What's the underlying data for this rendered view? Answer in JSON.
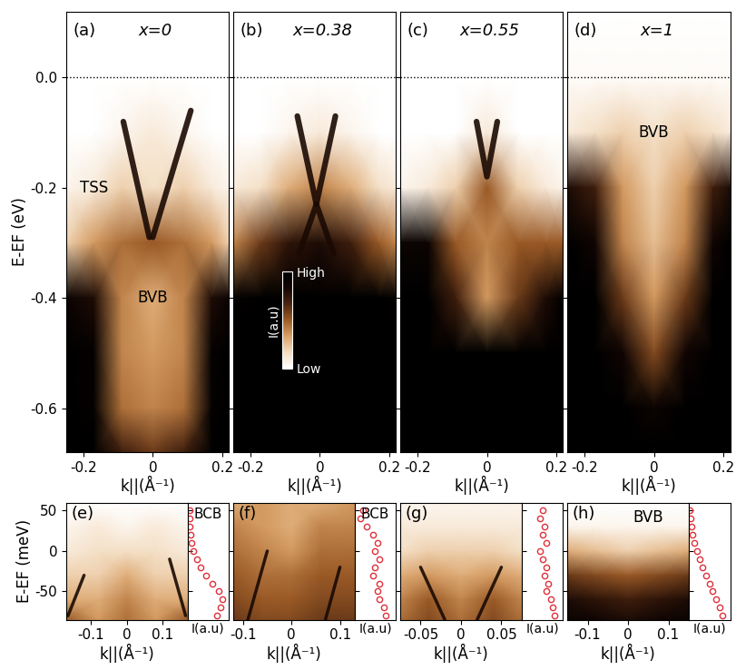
{
  "chart_data": [
    {
      "type": "heatmap",
      "panel": "(a)",
      "title": "x=0",
      "xlabel": "k||(Å⁻¹)",
      "ylabel": "E-EF (eV)",
      "xlim": [
        -0.25,
        0.22
      ],
      "ylim": [
        -0.68,
        0.12
      ],
      "xticks": [
        -0.2,
        0,
        0.2
      ],
      "yticks": [
        0.0,
        -0.2,
        -0.4,
        -0.6
      ],
      "fermi_level": 0.0,
      "k": [
        -0.25,
        -0.17,
        -0.09,
        0,
        0.09,
        0.17,
        0.22
      ],
      "E": [
        0.12,
        0.0,
        -0.1,
        -0.2,
        -0.3,
        -0.4,
        -0.5,
        -0.6,
        -0.68
      ],
      "intensity": [
        [
          0,
          0,
          0,
          0,
          0,
          0,
          0
        ],
        [
          0,
          0,
          0,
          0,
          0,
          0,
          0
        ],
        [
          0,
          0,
          0.05,
          0.1,
          0.05,
          0,
          0
        ],
        [
          0.05,
          0.1,
          0.2,
          0.15,
          0.2,
          0.1,
          0.05
        ],
        [
          0.2,
          0.35,
          0.45,
          0.5,
          0.45,
          0.35,
          0.2
        ],
        [
          0.9,
          0.8,
          0.4,
          0.3,
          0.4,
          0.8,
          0.9
        ],
        [
          1,
          0.95,
          0.4,
          0.35,
          0.4,
          0.95,
          1
        ],
        [
          1,
          0.95,
          0.45,
          0.4,
          0.45,
          0.95,
          1
        ],
        [
          1,
          1,
          0.7,
          0.6,
          0.7,
          1,
          1
        ]
      ],
      "bands": [
        {
          "k": [
            -0.085,
            -0.01
          ],
          "E": [
            -0.08,
            -0.29
          ]
        },
        {
          "k": [
            0.11,
            0.0
          ],
          "E": [
            -0.06,
            -0.29
          ]
        }
      ],
      "annotations": [
        {
          "text": "TSS",
          "k": -0.17,
          "E": -0.2
        },
        {
          "text": "BVB",
          "k": 0.0,
          "E": -0.4
        }
      ]
    },
    {
      "type": "heatmap",
      "panel": "(b)",
      "title": "x=0.38",
      "xlabel": "k||(Å⁻¹)",
      "tick_labels": "x",
      "xlim": [
        -0.25,
        0.22
      ],
      "ylim": [
        -0.68,
        0.12
      ],
      "xticks": [
        -0.2,
        0,
        0.2
      ],
      "yticks": [
        0.0,
        -0.2,
        -0.4,
        -0.6
      ],
      "fermi_level": 0.0,
      "k": [
        -0.25,
        -0.17,
        -0.09,
        0,
        0.09,
        0.17,
        0.22
      ],
      "E": [
        0.12,
        0.0,
        -0.1,
        -0.2,
        -0.3,
        -0.4,
        -0.5,
        -0.6,
        -0.68
      ],
      "intensity": [
        [
          0,
          0,
          0,
          0,
          0,
          0,
          0
        ],
        [
          0,
          0,
          0,
          0,
          0,
          0,
          0
        ],
        [
          0,
          0,
          0.05,
          0.1,
          0.05,
          0,
          0
        ],
        [
          0.1,
          0.15,
          0.3,
          0.4,
          0.3,
          0.15,
          0.1
        ],
        [
          0.4,
          0.6,
          0.75,
          0.8,
          0.7,
          0.5,
          0.4
        ],
        [
          0.95,
          1,
          1,
          1,
          1,
          1,
          0.95
        ],
        [
          1,
          1,
          1,
          1,
          1,
          1,
          1
        ],
        [
          1,
          1,
          1,
          1,
          1,
          1,
          1
        ],
        [
          1,
          1,
          1,
          1,
          1,
          1,
          1
        ]
      ],
      "bands": [
        {
          "k": [
            -0.065,
            -0.01,
            0.045
          ],
          "E": [
            -0.07,
            -0.23,
            -0.07
          ]
        },
        {
          "k": [
            -0.06,
            -0.01,
            0.04
          ],
          "E": [
            -0.32,
            -0.23,
            -0.32
          ]
        }
      ],
      "annotations": [],
      "colorbar": {
        "label": "I(a.u)",
        "range": [
          0,
          1
        ],
        "ticks": [
          {
            "value": 0,
            "label": "Low"
          },
          {
            "value": 1,
            "label": "High"
          }
        ]
      }
    },
    {
      "type": "heatmap",
      "panel": "(c)",
      "title": "x=0.55",
      "xlabel": "k||(Å⁻¹)",
      "tick_labels": "x",
      "xlim": [
        -0.25,
        0.22
      ],
      "ylim": [
        -0.68,
        0.12
      ],
      "xticks": [
        -0.2,
        0,
        0.2
      ],
      "yticks": [
        0.0,
        -0.2,
        -0.4,
        -0.6
      ],
      "fermi_level": 0.0,
      "k": [
        -0.25,
        -0.17,
        -0.09,
        0,
        0.09,
        0.17,
        0.22
      ],
      "E": [
        0.12,
        0.0,
        -0.1,
        -0.2,
        -0.3,
        -0.4,
        -0.5,
        -0.6,
        -0.68
      ],
      "intensity": [
        [
          0,
          0,
          0,
          0,
          0,
          0,
          0
        ],
        [
          0,
          0,
          0,
          0,
          0,
          0,
          0
        ],
        [
          0,
          0,
          0,
          0.1,
          0,
          0,
          0
        ],
        [
          0.05,
          0.1,
          0.2,
          0.5,
          0.2,
          0.1,
          0.05
        ],
        [
          0.9,
          0.9,
          0.5,
          0.4,
          0.5,
          0.5,
          0.5
        ],
        [
          1,
          1,
          0.7,
          0.35,
          0.6,
          0.8,
          1
        ],
        [
          1,
          1,
          1,
          1,
          1,
          1,
          1
        ],
        [
          1,
          1,
          1,
          1,
          1,
          1,
          1
        ],
        [
          1,
          1,
          1,
          1,
          1,
          1,
          1
        ]
      ],
      "bands": [
        {
          "k": [
            -0.03,
            0.0,
            0.03
          ],
          "E": [
            -0.08,
            -0.18,
            -0.08
          ]
        }
      ],
      "annotations": []
    },
    {
      "type": "heatmap",
      "panel": "(d)",
      "title": "x=1",
      "xlabel": "k||(Å⁻¹)",
      "tick_labels": "x",
      "xlim": [
        -0.25,
        0.22
      ],
      "ylim": [
        -0.68,
        0.12
      ],
      "xticks": [
        -0.2,
        0,
        0.2
      ],
      "yticks": [
        0.0,
        -0.2,
        -0.4,
        -0.6
      ],
      "fermi_level": 0.0,
      "k": [
        -0.25,
        -0.17,
        -0.09,
        0,
        0.09,
        0.17,
        0.22
      ],
      "E": [
        0.12,
        0.0,
        -0.1,
        -0.2,
        -0.3,
        -0.4,
        -0.5,
        -0.6,
        -0.68
      ],
      "intensity": [
        [
          0,
          0,
          0,
          0,
          0,
          0,
          0
        ],
        [
          0.02,
          0.02,
          0.02,
          0.02,
          0.02,
          0.02,
          0.02
        ],
        [
          0.1,
          0.15,
          0.2,
          0.15,
          0.2,
          0.15,
          0.1
        ],
        [
          0.8,
          0.7,
          0.35,
          0.2,
          0.35,
          0.7,
          0.8
        ],
        [
          1,
          0.85,
          0.4,
          0.25,
          0.4,
          0.85,
          1
        ],
        [
          1,
          1,
          0.6,
          0.35,
          0.6,
          1,
          1
        ],
        [
          1,
          1,
          0.85,
          0.55,
          0.85,
          1,
          1
        ],
        [
          1,
          1,
          1,
          0.9,
          1,
          1,
          1
        ],
        [
          1,
          1,
          1,
          1,
          1,
          1,
          1
        ]
      ],
      "bands": [],
      "annotations": [
        {
          "text": "BVB",
          "k": 0.0,
          "E": -0.1
        }
      ]
    },
    {
      "type": "heatmap",
      "panel": "(e)",
      "xlabel": "k||(Å⁻¹)",
      "ylabel": "E-EF (meV)",
      "xlim": [
        -0.17,
        0.17
      ],
      "ylim": [
        -85,
        60
      ],
      "xticks": [
        -0.1,
        0,
        0.1
      ],
      "yticks": [
        -50,
        0,
        50
      ],
      "k": [
        -0.17,
        -0.08,
        0,
        0.08,
        0.17
      ],
      "E": [
        60,
        30,
        0,
        -30,
        -60,
        -85
      ],
      "intensity": [
        [
          0,
          0,
          0,
          0,
          0
        ],
        [
          0.05,
          0.1,
          0.05,
          0.1,
          0.05
        ],
        [
          0.1,
          0.15,
          0.15,
          0.15,
          0.1
        ],
        [
          0.2,
          0.2,
          0.3,
          0.2,
          0.2
        ],
        [
          0.3,
          0.3,
          0.4,
          0.3,
          0.3
        ],
        [
          0.5,
          0.35,
          0.45,
          0.35,
          0.5
        ]
      ],
      "bands": [
        {
          "k": [
            -0.165,
            -0.12
          ],
          "E": [
            -80,
            -30
          ]
        },
        {
          "k": [
            0.165,
            0.12
          ],
          "E": [
            -80,
            -10
          ]
        }
      ],
      "annotations": [],
      "edc": {
        "xlabel": "I(a.u)",
        "xlim": [
          0,
          1
        ],
        "color": "#e0303a",
        "marker": "o",
        "E": [
          50,
          40,
          30,
          20,
          10,
          0,
          -10,
          -20,
          -30,
          -40,
          -50,
          -60,
          -70,
          -80
        ],
        "I": [
          0.05,
          0.05,
          0.06,
          0.08,
          0.1,
          0.15,
          0.22,
          0.32,
          0.45,
          0.6,
          0.75,
          0.85,
          0.8,
          0.7
        ],
        "annotations": [
          {
            "text": "BCB",
            "I": 0.5,
            "E": 45
          }
        ]
      }
    },
    {
      "type": "heatmap",
      "panel": "(f)",
      "xlabel": "k||(Å⁻¹)",
      "tick_labels": "x",
      "xlim": [
        -0.12,
        0.13
      ],
      "ylim": [
        -85,
        60
      ],
      "xticks": [
        -0.1,
        0,
        0.1
      ],
      "yticks": [
        -50,
        0,
        50
      ],
      "k": [
        -0.12,
        -0.06,
        0,
        0.06,
        0.13
      ],
      "E": [
        60,
        30,
        0,
        -30,
        -60,
        -85
      ],
      "intensity": [
        [
          0.3,
          0.35,
          0.3,
          0.3,
          0.35
        ],
        [
          0.4,
          0.35,
          0.3,
          0.4,
          0.4
        ],
        [
          0.45,
          0.4,
          0.35,
          0.45,
          0.45
        ],
        [
          0.5,
          0.45,
          0.45,
          0.5,
          0.5
        ],
        [
          0.55,
          0.5,
          0.5,
          0.55,
          0.55
        ],
        [
          0.6,
          0.55,
          0.55,
          0.6,
          0.6
        ]
      ],
      "bands": [
        {
          "k": [
            -0.09,
            -0.05
          ],
          "E": [
            -85,
            0
          ]
        },
        {
          "k": [
            0.07,
            0.1
          ],
          "E": [
            -85,
            -20
          ]
        }
      ],
      "annotations": [],
      "edc": {
        "xlabel": "I(a.u)",
        "xlim": [
          0,
          1
        ],
        "color": "#e0303a",
        "marker": "o",
        "E": [
          50,
          40,
          30,
          20,
          10,
          0,
          -10,
          -20,
          -30,
          -40,
          -50,
          -60,
          -70,
          -80
        ],
        "I": [
          0.2,
          0.15,
          0.3,
          0.45,
          0.55,
          0.5,
          0.6,
          0.5,
          0.45,
          0.6,
          0.55,
          0.6,
          0.7,
          0.75
        ],
        "annotations": [
          {
            "text": "BCB",
            "I": 0.5,
            "E": 45
          }
        ]
      }
    },
    {
      "type": "heatmap",
      "panel": "(g)",
      "xlabel": "k||(Å⁻¹)",
      "tick_labels": "x",
      "xlim": [
        -0.075,
        0.075
      ],
      "ylim": [
        -85,
        60
      ],
      "xticks": [
        -0.05,
        0,
        0.05
      ],
      "yticks": [
        -50,
        0,
        50
      ],
      "k": [
        -0.075,
        -0.04,
        0,
        0.04,
        0.075
      ],
      "E": [
        60,
        30,
        0,
        -30,
        -60,
        -85
      ],
      "intensity": [
        [
          0.05,
          0.05,
          0.05,
          0.05,
          0.05
        ],
        [
          0.1,
          0.1,
          0.1,
          0.1,
          0.1
        ],
        [
          0.15,
          0.2,
          0.2,
          0.2,
          0.15
        ],
        [
          0.3,
          0.35,
          0.3,
          0.35,
          0.3
        ],
        [
          0.4,
          0.5,
          0.4,
          0.5,
          0.4
        ],
        [
          0.45,
          0.55,
          0.45,
          0.55,
          0.45
        ]
      ],
      "bands": [
        {
          "k": [
            -0.02,
            -0.05
          ],
          "E": [
            -85,
            -20
          ]
        },
        {
          "k": [
            0.02,
            0.05
          ],
          "E": [
            -85,
            -20
          ]
        }
      ],
      "annotations": [],
      "edc": {
        "xlabel": "I(a.u)",
        "xlim": [
          0,
          1
        ],
        "color": "#e0303a",
        "marker": "o",
        "E": [
          50,
          40,
          30,
          20,
          10,
          0,
          -10,
          -20,
          -30,
          -40,
          -50,
          -60,
          -70,
          -80
        ],
        "I": [
          0.5,
          0.45,
          0.55,
          0.5,
          0.6,
          0.45,
          0.5,
          0.6,
          0.55,
          0.65,
          0.6,
          0.7,
          0.75,
          0.8
        ],
        "annotations": []
      }
    },
    {
      "type": "heatmap",
      "panel": "(h)",
      "xlabel": "k||(Å⁻¹)",
      "tick_labels": "x",
      "xlim": [
        -0.15,
        0.15
      ],
      "ylim": [
        -85,
        60
      ],
      "xticks": [
        -0.1,
        0,
        0.1
      ],
      "yticks": [
        -50,
        0,
        50
      ],
      "k": [
        -0.15,
        -0.08,
        0,
        0.08,
        0.15
      ],
      "E": [
        60,
        30,
        0,
        -30,
        -60,
        -85
      ],
      "intensity": [
        [
          0,
          0,
          0,
          0,
          0
        ],
        [
          0.05,
          0.05,
          0.05,
          0.05,
          0.05
        ],
        [
          0.3,
          0.25,
          0.2,
          0.25,
          0.3
        ],
        [
          0.6,
          0.55,
          0.5,
          0.55,
          0.6
        ],
        [
          0.8,
          0.75,
          0.7,
          0.75,
          0.8
        ],
        [
          0.9,
          0.85,
          0.8,
          0.85,
          0.9
        ]
      ],
      "bands": [],
      "annotations": [
        {
          "text": "BVB",
          "k": 0.05,
          "E": 42
        }
      ],
      "edc": {
        "xlabel": "I(a.u)",
        "xlim": [
          0,
          1
        ],
        "color": "#e0303a",
        "marker": "o",
        "E": [
          50,
          40,
          30,
          20,
          10,
          0,
          -10,
          -20,
          -30,
          -40,
          -50,
          -60,
          -70,
          -80
        ],
        "I": [
          0.02,
          0.04,
          0.06,
          0.1,
          0.14,
          0.2,
          0.26,
          0.34,
          0.42,
          0.5,
          0.58,
          0.66,
          0.74,
          0.82
        ],
        "annotations": []
      }
    }
  ]
}
